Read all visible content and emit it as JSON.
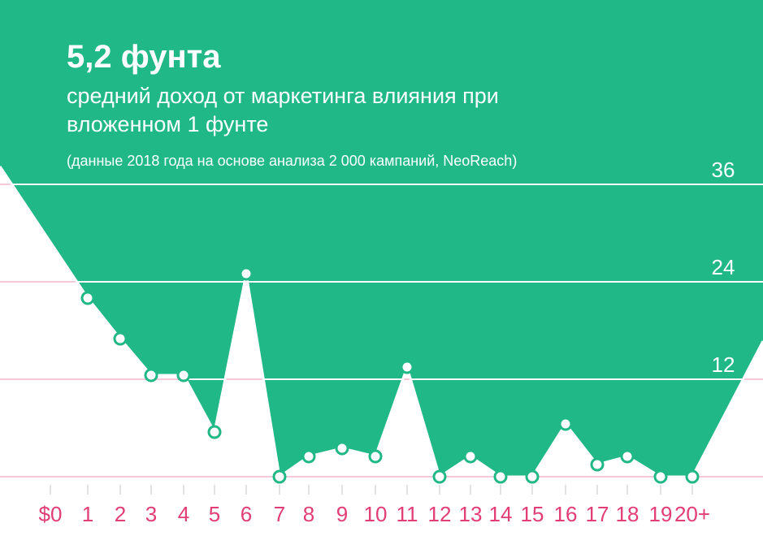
{
  "header": {
    "headline": "5,2 фунта",
    "subtitle": "средний доход от маркетинга влияния при вложенном 1 фунте",
    "note": "(данные 2018 года на основе анализа 2 000 кампаний, NeoReach)"
  },
  "colors": {
    "fill": "#20b886",
    "axis_labels": "#e23d74",
    "gridline": "#f4c8d6",
    "marker": "#ffffff",
    "y_labels": "#ffffff"
  },
  "chart_data": {
    "type": "area",
    "categories": [
      "$0",
      "1",
      "2",
      "3",
      "4",
      "5",
      "6",
      "7",
      "8",
      "9",
      "10",
      "11",
      "12",
      "13",
      "14",
      "15",
      "16",
      "17",
      "18",
      "19",
      "20+"
    ],
    "values": [
      null,
      22,
      17,
      12.5,
      12.5,
      5.5,
      25,
      0,
      2.5,
      3.5,
      2.5,
      13.5,
      0,
      2.5,
      0,
      0,
      6.5,
      1.5,
      2.5,
      0,
      0
    ],
    "yticks": [
      0,
      12,
      24,
      36
    ],
    "ylim": [
      -2,
      39
    ],
    "grid": true,
    "legend": "none"
  }
}
